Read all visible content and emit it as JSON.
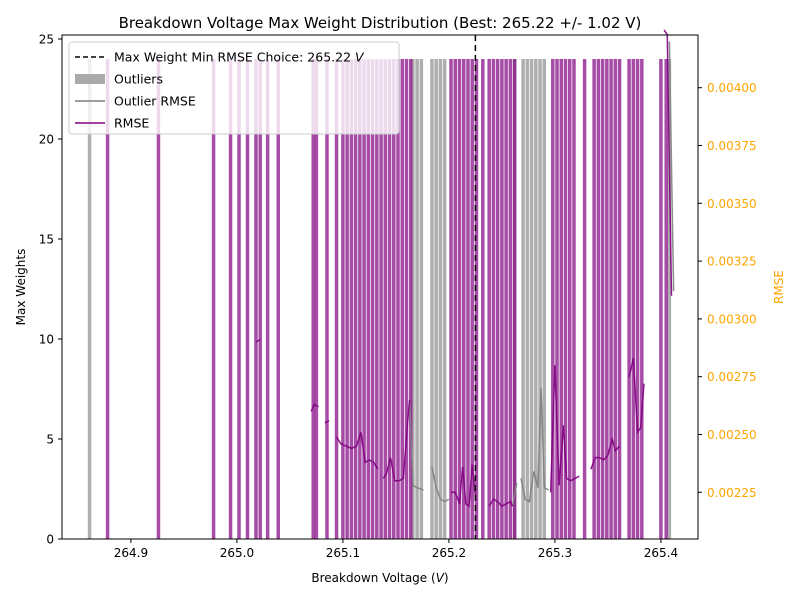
{
  "chart_data": {
    "type": "bar",
    "title": "Breakdown Voltage Max Weight Distribution (Best: 265.22 +/- 1.02 V)",
    "xlabel": "Breakdown Voltage (",
    "xlabel_italic": "V",
    "xlabel_close": ")",
    "ylabel": "Max Weights",
    "ylabel_right": "RMSE",
    "xlim": [
      264.835,
      265.435
    ],
    "ylim": [
      0,
      25.2
    ],
    "y2lim": [
      0.002048,
      0.004228
    ],
    "xticks": [
      "264.9",
      "265.0",
      "265.1",
      "265.2",
      "265.3",
      "265.4"
    ],
    "xtick_values": [
      264.9,
      265.0,
      265.1,
      265.2,
      265.3,
      265.4
    ],
    "yticks": [
      "0",
      "5",
      "10",
      "15",
      "20",
      "25"
    ],
    "ytick_values": [
      0,
      5,
      10,
      15,
      20,
      25
    ],
    "y2ticks": [
      "0.00225",
      "0.00250",
      "0.00275",
      "0.00300",
      "0.00325",
      "0.00350",
      "0.00375",
      "0.00400"
    ],
    "y2tick_values": [
      0.00225,
      0.0025,
      0.00275,
      0.003,
      0.00325,
      0.0035,
      0.00375,
      0.004
    ],
    "best_choice": 265.225,
    "legend": {
      "placement": "top-left",
      "items": [
        {
          "kind": "dashed-line",
          "label": "Max Weight Min RMSE Choice: 265.22",
          "label_italic": "V",
          "color": "#000000"
        },
        {
          "kind": "patch",
          "label": "Outliers",
          "color": "#aaaaaa"
        },
        {
          "kind": "line",
          "label": "Outlier RMSE",
          "color": "#7f7f7f"
        },
        {
          "kind": "line",
          "label": "RMSE",
          "color": "#800080"
        }
      ]
    },
    "colors": {
      "rmse": "#800080",
      "outlier": "#808080",
      "bar_main": "#800080",
      "bar_outlier": "#aaaaaa",
      "right_axis": "#ffa500"
    },
    "bar_top": 24,
    "bar_width": 0.0033,
    "bars_main": [
      264.878,
      264.926,
      264.978,
      264.994,
      265.002,
      265.01,
      265.018,
      265.022,
      265.029,
      265.039,
      265.072,
      265.075,
      265.085,
      265.094,
      265.1,
      265.104,
      265.108,
      265.112,
      265.116,
      265.12,
      265.124,
      265.128,
      265.132,
      265.136,
      265.14,
      265.144,
      265.148,
      265.152,
      265.156,
      265.16,
      265.164,
      265.202,
      265.206,
      265.21,
      265.214,
      265.218,
      265.222,
      265.226,
      265.232,
      265.238,
      265.242,
      265.246,
      265.25,
      265.254,
      265.258,
      265.262,
      265.298,
      265.302,
      265.306,
      265.31,
      265.314,
      265.318,
      265.328,
      265.337,
      265.341,
      265.345,
      265.349,
      265.353,
      265.357,
      265.361,
      265.37,
      265.374,
      265.378,
      265.382,
      265.4,
      265.405
    ],
    "bars_outlier": [
      264.861,
      265.166,
      265.17,
      265.174,
      265.184,
      265.188,
      265.192,
      265.196,
      265.262,
      265.27,
      265.274,
      265.278,
      265.282,
      265.286,
      265.29,
      265.408
    ],
    "rmse_segments": [
      [
        [
          265.018,
          0.0029
        ],
        [
          265.022,
          0.00291
        ]
      ],
      [
        [
          265.07,
          0.0026
        ],
        [
          265.073,
          0.00263
        ],
        [
          265.077,
          0.00262
        ]
      ],
      [
        [
          265.083,
          0.00255
        ],
        [
          265.087,
          0.00256
        ]
      ],
      [
        [
          265.094,
          0.00249
        ],
        [
          265.098,
          0.00246
        ],
        [
          265.103,
          0.00245
        ],
        [
          265.108,
          0.00244
        ],
        [
          265.113,
          0.00245
        ],
        [
          265.117,
          0.00251
        ],
        [
          265.121,
          0.00238
        ],
        [
          265.125,
          0.00239
        ],
        [
          265.129,
          0.00238
        ],
        [
          265.133,
          0.00235
        ]
      ],
      [
        [
          265.138,
          0.00231
        ],
        [
          265.141,
          0.00233
        ],
        [
          265.145,
          0.0024
        ],
        [
          265.149,
          0.0023
        ],
        [
          265.153,
          0.0023
        ],
        [
          265.157,
          0.00231
        ],
        [
          265.161,
          0.00255
        ],
        [
          265.163,
          0.00265
        ]
      ],
      [
        [
          265.202,
          0.00225
        ],
        [
          265.206,
          0.00225
        ],
        [
          265.21,
          0.0022
        ],
        [
          265.213,
          0.00236
        ],
        [
          265.216,
          0.0022
        ],
        [
          265.219,
          0.00219
        ],
        [
          265.222,
          0.00237
        ],
        [
          265.225,
          0.00223
        ]
      ],
      [
        [
          265.238,
          0.00219
        ],
        [
          265.242,
          0.00222
        ],
        [
          265.246,
          0.00221
        ],
        [
          265.25,
          0.00219
        ],
        [
          265.254,
          0.0022
        ],
        [
          265.258,
          0.00221
        ],
        [
          265.26,
          0.00219
        ]
      ],
      [
        [
          265.296,
          0.00225
        ],
        [
          265.3,
          0.0028
        ],
        [
          265.304,
          0.00228
        ],
        [
          265.308,
          0.00254
        ],
        [
          265.311,
          0.00231
        ],
        [
          265.315,
          0.0023
        ],
        [
          265.319,
          0.00231
        ],
        [
          265.323,
          0.00232
        ]
      ],
      [
        [
          265.334,
          0.00235
        ],
        [
          265.338,
          0.0024
        ],
        [
          265.342,
          0.0024
        ],
        [
          265.346,
          0.00239
        ],
        [
          265.35,
          0.00241
        ],
        [
          265.354,
          0.00248
        ],
        [
          265.357,
          0.00243
        ],
        [
          265.361,
          0.00245
        ]
      ],
      [
        [
          265.37,
          0.00275
        ],
        [
          265.374,
          0.00283
        ],
        [
          265.378,
          0.00251
        ],
        [
          265.381,
          0.00253
        ],
        [
          265.384,
          0.00272
        ]
      ],
      [
        [
          265.403,
          0.00425
        ],
        [
          265.406,
          0.00423
        ],
        [
          265.41,
          0.0031
        ]
      ]
    ],
    "outlier_segments": [
      [
        [
          265.163,
          0.00265
        ],
        [
          265.166,
          0.00228
        ],
        [
          265.17,
          0.00227
        ],
        [
          265.176,
          0.00226
        ]
      ],
      [
        [
          265.184,
          0.00236
        ],
        [
          265.188,
          0.00227
        ],
        [
          265.192,
          0.00222
        ],
        [
          265.196,
          0.00221
        ],
        [
          265.2,
          0.00222
        ]
      ],
      [
        [
          265.26,
          0.00219
        ],
        [
          265.264,
          0.00229
        ]
      ],
      [
        [
          265.268,
          0.00231
        ],
        [
          265.272,
          0.00222
        ],
        [
          265.276,
          0.00221
        ],
        [
          265.28,
          0.00234
        ],
        [
          265.284,
          0.00227
        ],
        [
          265.287,
          0.0027
        ],
        [
          265.29,
          0.00227
        ],
        [
          265.294,
          0.00226
        ]
      ],
      [
        [
          265.408,
          0.0042
        ],
        [
          265.412,
          0.00312
        ]
      ]
    ]
  }
}
